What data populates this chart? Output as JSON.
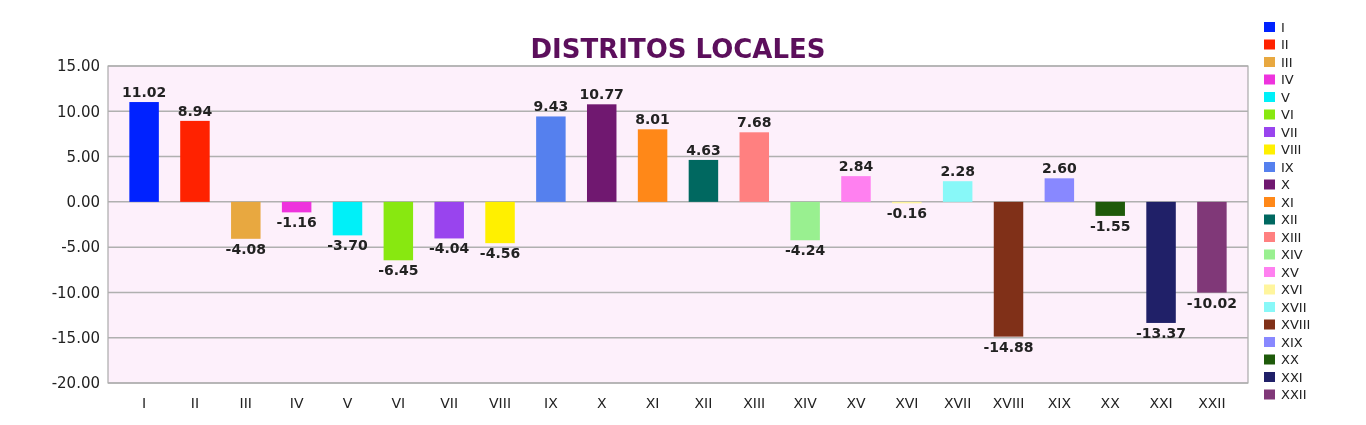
{
  "chart_data": {
    "type": "bar",
    "title": "DISTRITOS LOCALES",
    "categories": [
      "I",
      "II",
      "III",
      "IV",
      "V",
      "VI",
      "VII",
      "VIII",
      "IX",
      "X",
      "XI",
      "XII",
      "XIII",
      "XIV",
      "XV",
      "XVI",
      "XVII",
      "XVIII",
      "XIX",
      "XX",
      "XXI",
      "XXII"
    ],
    "series": [
      {
        "name": "I",
        "color": "#0022ff",
        "values": [
          11.02,
          null,
          null,
          null,
          null,
          null,
          null,
          null,
          null,
          null,
          null,
          null,
          null,
          null,
          null,
          null,
          null,
          null,
          null,
          null,
          null,
          null
        ],
        "value_labels": [
          "11.02",
          null,
          null,
          null,
          null,
          null,
          null,
          null,
          null,
          null,
          null,
          null,
          null,
          null,
          null,
          null,
          null,
          null,
          null,
          null,
          null,
          null
        ]
      },
      {
        "name": "II",
        "color": "#ff2200",
        "values": [
          null,
          8.94,
          null,
          null,
          null,
          null,
          null,
          null,
          null,
          null,
          null,
          null,
          null,
          null,
          null,
          null,
          null,
          null,
          null,
          null,
          null,
          null
        ],
        "value_labels": [
          null,
          "8.94",
          null,
          null,
          null,
          null,
          null,
          null,
          null,
          null,
          null,
          null,
          null,
          null,
          null,
          null,
          null,
          null,
          null,
          null,
          null,
          null
        ]
      },
      {
        "name": "III",
        "color": "#e8a840",
        "values": [
          null,
          null,
          -4.08,
          null,
          null,
          null,
          null,
          null,
          null,
          null,
          null,
          null,
          null,
          null,
          null,
          null,
          null,
          null,
          null,
          null,
          null,
          null
        ],
        "value_labels": [
          null,
          null,
          "-4.08",
          null,
          null,
          null,
          null,
          null,
          null,
          null,
          null,
          null,
          null,
          null,
          null,
          null,
          null,
          null,
          null,
          null,
          null,
          null
        ]
      },
      {
        "name": "IV",
        "color": "#ee33dd",
        "values": [
          null,
          null,
          null,
          -1.16,
          null,
          null,
          null,
          null,
          null,
          null,
          null,
          null,
          null,
          null,
          null,
          null,
          null,
          null,
          null,
          null,
          null,
          null
        ],
        "value_labels": [
          null,
          null,
          null,
          "-1.16",
          null,
          null,
          null,
          null,
          null,
          null,
          null,
          null,
          null,
          null,
          null,
          null,
          null,
          null,
          null,
          null,
          null,
          null
        ]
      },
      {
        "name": "V",
        "color": "#00f0f8",
        "values": [
          null,
          null,
          null,
          null,
          -3.7,
          null,
          null,
          null,
          null,
          null,
          null,
          null,
          null,
          null,
          null,
          null,
          null,
          null,
          null,
          null,
          null,
          null
        ],
        "value_labels": [
          null,
          null,
          null,
          null,
          "-3.70",
          null,
          null,
          null,
          null,
          null,
          null,
          null,
          null,
          null,
          null,
          null,
          null,
          null,
          null,
          null,
          null,
          null
        ]
      },
      {
        "name": "VI",
        "color": "#88e810",
        "values": [
          null,
          null,
          null,
          null,
          null,
          -6.45,
          null,
          null,
          null,
          null,
          null,
          null,
          null,
          null,
          null,
          null,
          null,
          null,
          null,
          null,
          null,
          null
        ],
        "value_labels": [
          null,
          null,
          null,
          null,
          null,
          "-6.45",
          null,
          null,
          null,
          null,
          null,
          null,
          null,
          null,
          null,
          null,
          null,
          null,
          null,
          null,
          null,
          null
        ]
      },
      {
        "name": "VII",
        "color": "#9944ee",
        "values": [
          null,
          null,
          null,
          null,
          null,
          null,
          -4.04,
          null,
          null,
          null,
          null,
          null,
          null,
          null,
          null,
          null,
          null,
          null,
          null,
          null,
          null,
          null
        ],
        "value_labels": [
          null,
          null,
          null,
          null,
          null,
          null,
          "-4.04",
          null,
          null,
          null,
          null,
          null,
          null,
          null,
          null,
          null,
          null,
          null,
          null,
          null,
          null,
          null
        ]
      },
      {
        "name": "VIII",
        "color": "#fff000",
        "values": [
          null,
          null,
          null,
          null,
          null,
          null,
          null,
          -4.56,
          null,
          null,
          null,
          null,
          null,
          null,
          null,
          null,
          null,
          null,
          null,
          null,
          null,
          null
        ],
        "value_labels": [
          null,
          null,
          null,
          null,
          null,
          null,
          null,
          "-4.56",
          null,
          null,
          null,
          null,
          null,
          null,
          null,
          null,
          null,
          null,
          null,
          null,
          null,
          null
        ]
      },
      {
        "name": "IX",
        "color": "#5580ee",
        "values": [
          null,
          null,
          null,
          null,
          null,
          null,
          null,
          null,
          9.43,
          null,
          null,
          null,
          null,
          null,
          null,
          null,
          null,
          null,
          null,
          null,
          null,
          null
        ],
        "value_labels": [
          null,
          null,
          null,
          null,
          null,
          null,
          null,
          null,
          "9.43",
          null,
          null,
          null,
          null,
          null,
          null,
          null,
          null,
          null,
          null,
          null,
          null,
          null
        ]
      },
      {
        "name": "X",
        "color": "#701870",
        "values": [
          null,
          null,
          null,
          null,
          null,
          null,
          null,
          null,
          null,
          10.77,
          null,
          null,
          null,
          null,
          null,
          null,
          null,
          null,
          null,
          null,
          null,
          null
        ],
        "value_labels": [
          null,
          null,
          null,
          null,
          null,
          null,
          null,
          null,
          null,
          "10.77",
          null,
          null,
          null,
          null,
          null,
          null,
          null,
          null,
          null,
          null,
          null,
          null
        ]
      },
      {
        "name": "XI",
        "color": "#ff8818",
        "values": [
          null,
          null,
          null,
          null,
          null,
          null,
          null,
          null,
          null,
          null,
          8.01,
          null,
          null,
          null,
          null,
          null,
          null,
          null,
          null,
          null,
          null,
          null
        ],
        "value_labels": [
          null,
          null,
          null,
          null,
          null,
          null,
          null,
          null,
          null,
          null,
          "8.01",
          null,
          null,
          null,
          null,
          null,
          null,
          null,
          null,
          null,
          null,
          null
        ]
      },
      {
        "name": "XII",
        "color": "#006860",
        "values": [
          null,
          null,
          null,
          null,
          null,
          null,
          null,
          null,
          null,
          null,
          null,
          4.63,
          null,
          null,
          null,
          null,
          null,
          null,
          null,
          null,
          null,
          null
        ],
        "value_labels": [
          null,
          null,
          null,
          null,
          null,
          null,
          null,
          null,
          null,
          null,
          null,
          "4.63",
          null,
          null,
          null,
          null,
          null,
          null,
          null,
          null,
          null,
          null
        ]
      },
      {
        "name": "XIII",
        "color": "#ff8080",
        "values": [
          null,
          null,
          null,
          null,
          null,
          null,
          null,
          null,
          null,
          null,
          null,
          null,
          7.68,
          null,
          null,
          null,
          null,
          null,
          null,
          null,
          null,
          null
        ],
        "value_labels": [
          null,
          null,
          null,
          null,
          null,
          null,
          null,
          null,
          null,
          null,
          null,
          null,
          "7.68",
          null,
          null,
          null,
          null,
          null,
          null,
          null,
          null,
          null
        ]
      },
      {
        "name": "XIV",
        "color": "#99f090",
        "values": [
          null,
          null,
          null,
          null,
          null,
          null,
          null,
          null,
          null,
          null,
          null,
          null,
          null,
          -4.24,
          null,
          null,
          null,
          null,
          null,
          null,
          null,
          null
        ],
        "value_labels": [
          null,
          null,
          null,
          null,
          null,
          null,
          null,
          null,
          null,
          null,
          null,
          null,
          null,
          "-4.24",
          null,
          null,
          null,
          null,
          null,
          null,
          null,
          null
        ]
      },
      {
        "name": "XV",
        "color": "#ff80f0",
        "values": [
          null,
          null,
          null,
          null,
          null,
          null,
          null,
          null,
          null,
          null,
          null,
          null,
          null,
          null,
          2.84,
          null,
          null,
          null,
          null,
          null,
          null,
          null
        ],
        "value_labels": [
          null,
          null,
          null,
          null,
          null,
          null,
          null,
          null,
          null,
          null,
          null,
          null,
          null,
          null,
          "2.84",
          null,
          null,
          null,
          null,
          null,
          null,
          null
        ]
      },
      {
        "name": "XVI",
        "color": "#fff59d",
        "values": [
          null,
          null,
          null,
          null,
          null,
          null,
          null,
          null,
          null,
          null,
          null,
          null,
          null,
          null,
          null,
          -0.16,
          null,
          null,
          null,
          null,
          null,
          null
        ],
        "value_labels": [
          null,
          null,
          null,
          null,
          null,
          null,
          null,
          null,
          null,
          null,
          null,
          null,
          null,
          null,
          null,
          "-0.16",
          null,
          null,
          null,
          null,
          null,
          null
        ]
      },
      {
        "name": "XVII",
        "color": "#88f8f8",
        "values": [
          null,
          null,
          null,
          null,
          null,
          null,
          null,
          null,
          null,
          null,
          null,
          null,
          null,
          null,
          null,
          null,
          2.28,
          null,
          null,
          null,
          null,
          null
        ],
        "value_labels": [
          null,
          null,
          null,
          null,
          null,
          null,
          null,
          null,
          null,
          null,
          null,
          null,
          null,
          null,
          null,
          null,
          "2.28",
          null,
          null,
          null,
          null,
          null
        ]
      },
      {
        "name": "XVIII",
        "color": "#803018",
        "values": [
          null,
          null,
          null,
          null,
          null,
          null,
          null,
          null,
          null,
          null,
          null,
          null,
          null,
          null,
          null,
          null,
          null,
          -14.88,
          null,
          null,
          null,
          null
        ],
        "value_labels": [
          null,
          null,
          null,
          null,
          null,
          null,
          null,
          null,
          null,
          null,
          null,
          null,
          null,
          null,
          null,
          null,
          null,
          "-14.88",
          null,
          null,
          null,
          null
        ]
      },
      {
        "name": "XIX",
        "color": "#8888ff",
        "values": [
          null,
          null,
          null,
          null,
          null,
          null,
          null,
          null,
          null,
          null,
          null,
          null,
          null,
          null,
          null,
          null,
          null,
          null,
          2.6,
          null,
          null,
          null
        ],
        "value_labels": [
          null,
          null,
          null,
          null,
          null,
          null,
          null,
          null,
          null,
          null,
          null,
          null,
          null,
          null,
          null,
          null,
          null,
          null,
          "2.60",
          null,
          null,
          null
        ]
      },
      {
        "name": "XX",
        "color": "#1e5a0a",
        "values": [
          null,
          null,
          null,
          null,
          null,
          null,
          null,
          null,
          null,
          null,
          null,
          null,
          null,
          null,
          null,
          null,
          null,
          null,
          null,
          -1.55,
          null,
          null
        ],
        "value_labels": [
          null,
          null,
          null,
          null,
          null,
          null,
          null,
          null,
          null,
          null,
          null,
          null,
          null,
          null,
          null,
          null,
          null,
          null,
          null,
          "-1.55",
          null,
          null
        ]
      },
      {
        "name": "XXI",
        "color": "#202068",
        "values": [
          null,
          null,
          null,
          null,
          null,
          null,
          null,
          null,
          null,
          null,
          null,
          null,
          null,
          null,
          null,
          null,
          null,
          null,
          null,
          null,
          -13.37,
          null
        ],
        "value_labels": [
          null,
          null,
          null,
          null,
          null,
          null,
          null,
          null,
          null,
          null,
          null,
          null,
          null,
          null,
          null,
          null,
          null,
          null,
          null,
          null,
          "-13.37",
          null
        ]
      },
      {
        "name": "XXII",
        "color": "#803878",
        "values": [
          null,
          null,
          null,
          null,
          null,
          null,
          null,
          null,
          null,
          null,
          null,
          null,
          null,
          null,
          null,
          null,
          null,
          null,
          null,
          null,
          null,
          -10.02
        ],
        "value_labels": [
          null,
          null,
          null,
          null,
          null,
          null,
          null,
          null,
          null,
          null,
          null,
          null,
          null,
          null,
          null,
          null,
          null,
          null,
          null,
          null,
          null,
          "-10.02"
        ]
      }
    ],
    "ylim": [
      -20,
      15
    ],
    "yticks": [
      {
        "value": -20,
        "label": "-20.00"
      },
      {
        "value": -15,
        "label": "-15.00"
      },
      {
        "value": -10,
        "label": "-10.00"
      },
      {
        "value": -5,
        "label": "-5.00"
      },
      {
        "value": 0,
        "label": "0.00"
      },
      {
        "value": 5,
        "label": "5.00"
      },
      {
        "value": 10,
        "label": "10.00"
      },
      {
        "value": 15,
        "label": "15.00"
      }
    ],
    "grid": "y",
    "legend": "right"
  }
}
